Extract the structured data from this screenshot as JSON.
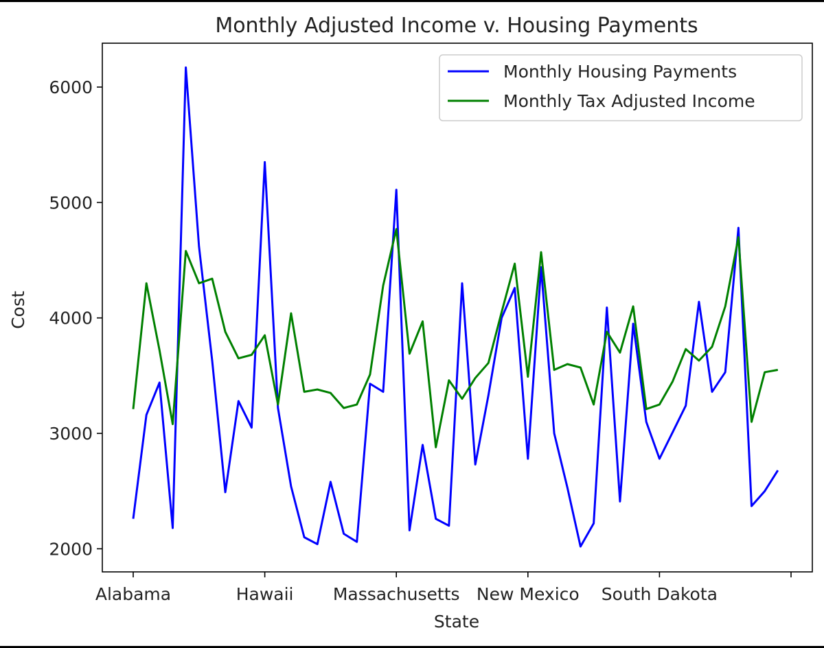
{
  "chart_data": {
    "type": "line",
    "title": "Monthly Adjusted Income v. Housing Payments",
    "xlabel": "State",
    "ylabel": "Cost",
    "ylim": [
      1800,
      6380
    ],
    "yticks": [
      2000,
      3000,
      4000,
      5000,
      6000
    ],
    "xtick_labels": [
      {
        "index": 0,
        "label": "Alabama"
      },
      {
        "index": 10,
        "label": "Hawaii"
      },
      {
        "index": 20,
        "label": "Massachusetts"
      },
      {
        "index": 30,
        "label": "New Mexico"
      },
      {
        "index": 40,
        "label": "South Dakota"
      },
      {
        "index": 50,
        "label": ""
      }
    ],
    "legend_position": "upper right",
    "grid": false,
    "x": [
      0,
      1,
      2,
      3,
      4,
      5,
      6,
      7,
      8,
      9,
      10,
      11,
      12,
      13,
      14,
      15,
      16,
      17,
      18,
      19,
      20,
      21,
      22,
      23,
      24,
      25,
      26,
      27,
      28,
      29,
      30,
      31,
      32,
      33,
      34,
      35,
      36,
      37,
      38,
      39,
      40,
      41,
      42,
      43,
      44,
      45,
      46,
      47,
      48,
      49
    ],
    "series": [
      {
        "name": "Monthly Housing Payments",
        "color": "#0000ff",
        "values": [
          2260,
          3160,
          3440,
          2180,
          6170,
          4620,
          3630,
          2490,
          3280,
          3050,
          5350,
          3220,
          2540,
          2100,
          2040,
          2580,
          2130,
          2060,
          3430,
          3360,
          5110,
          2160,
          2900,
          2260,
          2200,
          4300,
          2730,
          3330,
          4000,
          4260,
          2780,
          4440,
          3000,
          2530,
          2020,
          2220,
          4090,
          2410,
          3950,
          3100,
          2780,
          3010,
          3240,
          4140,
          3360,
          3530,
          4780,
          2370,
          2500,
          2680
        ]
      },
      {
        "name": "Monthly Tax Adjusted Income",
        "color": "#008000",
        "values": [
          3210,
          4300,
          3720,
          3080,
          4580,
          4300,
          4340,
          3880,
          3650,
          3680,
          3850,
          3250,
          4040,
          3360,
          3380,
          3350,
          3220,
          3250,
          3510,
          4280,
          4770,
          3690,
          3970,
          2880,
          3460,
          3300,
          3480,
          3610,
          4050,
          4470,
          3490,
          4570,
          3550,
          3600,
          3570,
          3250,
          3880,
          3700,
          4100,
          3210,
          3250,
          3450,
          3730,
          3630,
          3750,
          4100,
          4700,
          3100,
          3530,
          3550
        ]
      }
    ]
  }
}
